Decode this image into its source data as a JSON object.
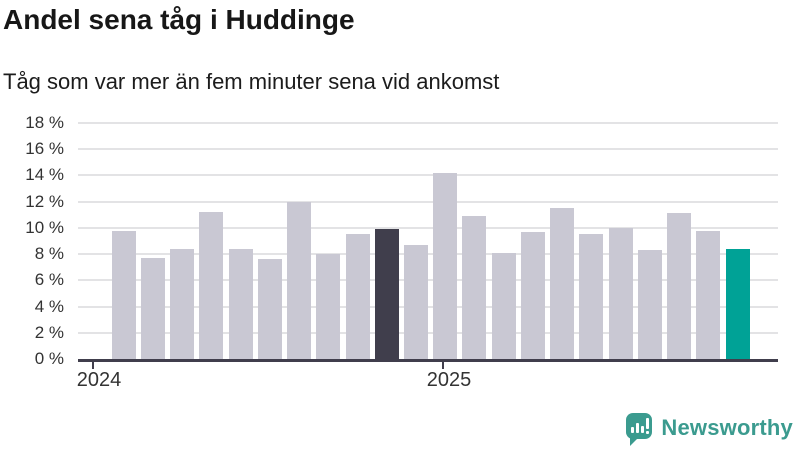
{
  "header": {
    "title": "Andel sena tåg i Huddinge",
    "subtitle": "Tåg som var mer än fem minuter sena vid ankomst"
  },
  "chart_data": {
    "type": "bar",
    "title": "Andel sena tåg i Huddinge",
    "subtitle": "Tåg som var mer än fem minuter sena vid ankomst",
    "unit": "%",
    "ylim": [
      0,
      18
    ],
    "grid": true,
    "y_ticks": [
      0,
      2,
      4,
      6,
      8,
      10,
      12,
      14,
      16,
      18
    ],
    "y_tick_labels": [
      "0 %",
      "2 %",
      "4 %",
      "6 %",
      "8 %",
      "10 %",
      "12 %",
      "14 %",
      "16 %",
      "18 %"
    ],
    "x_tick_labels": [
      "2024",
      "2025"
    ],
    "values": [
      9.8,
      7.7,
      8.4,
      11.2,
      8.4,
      7.6,
      12.0,
      8.0,
      9.5,
      9.9,
      8.7,
      14.2,
      10.9,
      8.1,
      9.7,
      11.5,
      9.5,
      10.0,
      8.3,
      11.1,
      9.8,
      8.4
    ],
    "highlight_dark_index": 9,
    "highlight_accent_index": 21,
    "colors": {
      "bar_default": "#c9c8d3",
      "bar_dark": "#403e4c",
      "bar_accent": "#00a296",
      "gridline": "#e3e3e5",
      "axis": "#403e4c",
      "tick_label": "#333333",
      "title_text": "#171717"
    }
  },
  "branding": {
    "logo_text": "Newsworthy",
    "logo_color": "#3b9b8f",
    "logo_icon": "bar-chart-speech-bubble-icon"
  }
}
